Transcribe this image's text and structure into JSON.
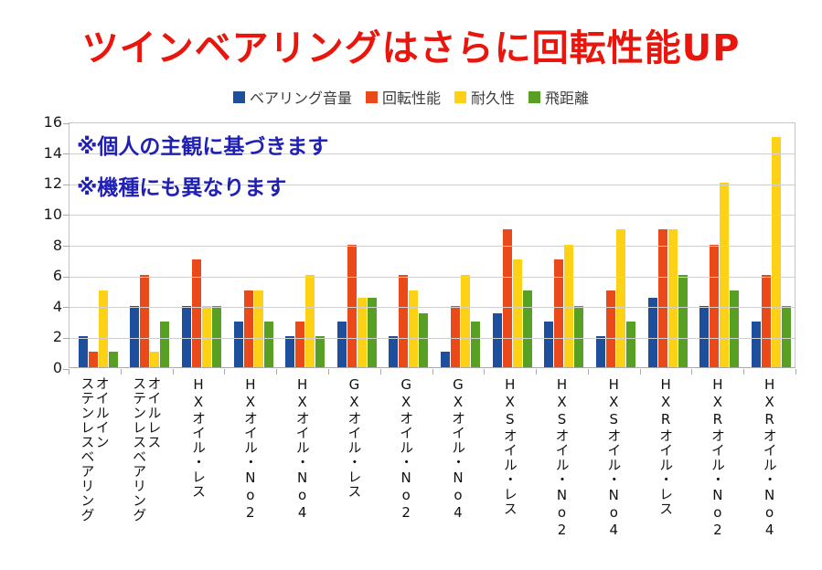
{
  "title": {
    "text": "ツインベアリングはさらに回転性能UP",
    "color": "#e8160c"
  },
  "annotations": {
    "line1": "※個人の主観に基づきます",
    "line2": "※機種にも異なります",
    "color": "#2020b4"
  },
  "chart_data": {
    "type": "bar",
    "title": "ツインベアリングはさらに回転性能UP",
    "categories": [
      "オイルイン\nステンレスベアリング",
      "オイルレス\nステンレスベアリング",
      "HXオイル・レス",
      "HXオイル・No2",
      "HXオイル・No4",
      "GXオイル・レス",
      "GXオイル・No2",
      "GXオイル・No4",
      "HXSオイル・レス",
      "HXSオイル・No2",
      "HXSオイル・No4",
      "HXRオイル・レス",
      "HXRオイル・No2",
      "HXRオイル・No4"
    ],
    "series": [
      {
        "name": "ベアリング音量",
        "color": "#1e4f9c",
        "values": [
          2,
          4,
          4,
          3,
          2,
          3,
          2,
          1,
          3.5,
          3,
          2,
          4.5,
          4,
          3
        ]
      },
      {
        "name": "回転性能",
        "color": "#ea4a1a",
        "values": [
          1,
          6,
          7,
          5,
          3,
          8,
          6,
          4,
          9,
          7,
          5,
          9,
          8,
          6
        ]
      },
      {
        "name": "耐久性",
        "color": "#fcd116",
        "values": [
          5,
          1,
          4,
          5,
          6,
          4.5,
          5,
          6,
          7,
          8,
          9,
          9,
          12,
          15
        ]
      },
      {
        "name": "飛距離",
        "color": "#57a024",
        "values": [
          1,
          3,
          4,
          3,
          2,
          4.5,
          3.5,
          3,
          5,
          4,
          3,
          6,
          5,
          4
        ]
      }
    ],
    "ylim": [
      0,
      16
    ],
    "ytick_step": 2,
    "grid": true,
    "legend_position": "top"
  }
}
